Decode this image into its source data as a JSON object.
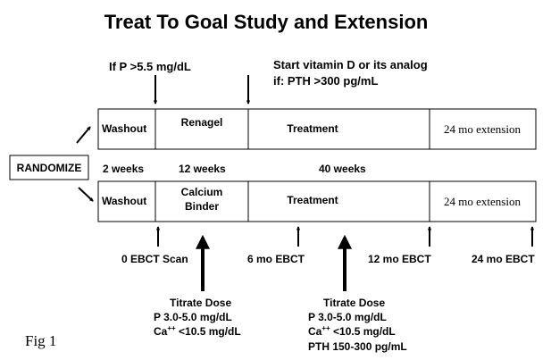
{
  "title": "Treat To Goal Study and Extension",
  "top_annotations": {
    "phosphorus": "If P >5.5 mg/dL",
    "vitamin_d_line1": "Start vitamin D or its analog",
    "vitamin_d_line2": "if: PTH >300 pg/mL"
  },
  "randomize_label": "RANDOMIZE",
  "arms": {
    "top": {
      "washout": "Washout",
      "drug": "Renagel",
      "treatment": "Treatment",
      "extension": "24 mo extension"
    },
    "bottom": {
      "washout": "Washout",
      "drug_line1": "Calcium",
      "drug_line2": "Binder",
      "treatment": "Treatment",
      "extension": "24 mo extension"
    }
  },
  "durations": {
    "washout": "2 weeks",
    "drug": "12 weeks",
    "treatment": "40 weeks"
  },
  "scans": {
    "baseline": "0 EBCT Scan",
    "six_month": "6 mo  EBCT",
    "twelve_month": "12 mo EBCT",
    "twentyfour_month": "24 mo EBCT"
  },
  "titrate_left": {
    "heading": "Titrate Dose",
    "line1": "P 3.0-5.0 mg/dL",
    "line2_prefix": "Ca",
    "line2_sup": "++",
    "line2_suffix": " <10.5 mg/dL"
  },
  "titrate_right": {
    "heading": "Titrate Dose",
    "line1": "P 3.0-5.0 mg/dL",
    "line2_prefix": "Ca",
    "line2_sup": "++",
    "line2_suffix": " <10.5 mg/dL",
    "line3": "PTH 150-300 pg/mL"
  },
  "figure_label": "Fig 1"
}
